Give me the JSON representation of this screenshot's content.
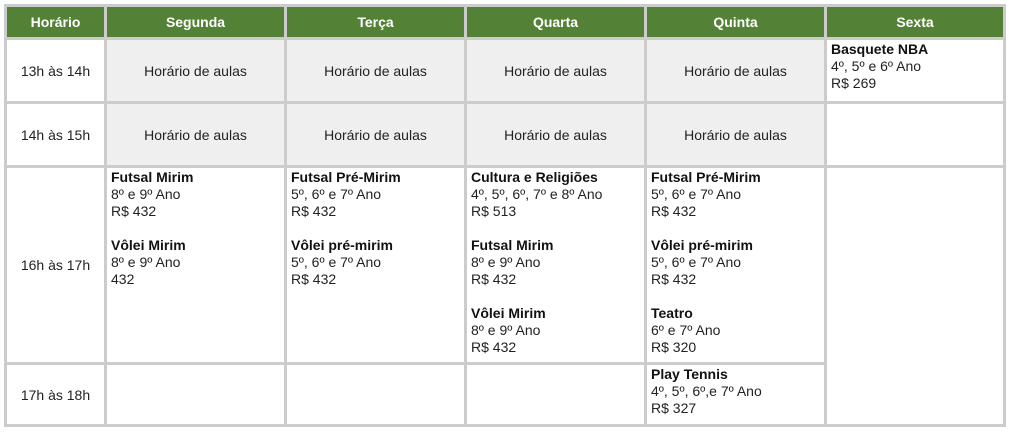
{
  "colors": {
    "header_bg": "#538135",
    "header_text": "#ffffff",
    "class_cell_bg": "#efefef",
    "border": "#cccccc"
  },
  "header": [
    "Horário",
    "Segunda",
    "Terça",
    "Quarta",
    "Quinta",
    "Sexta"
  ],
  "rows": [
    {
      "time": "13h às 14h",
      "cells": [
        {
          "type": "aulas",
          "text": "Horário de aulas"
        },
        {
          "type": "aulas",
          "text": "Horário de aulas"
        },
        {
          "type": "aulas",
          "text": "Horário de aulas"
        },
        {
          "type": "aulas",
          "text": "Horário de aulas"
        },
        {
          "type": "acts",
          "items": [
            {
              "name": "Basquete NBA",
              "grade": "4º, 5º e 6º  Ano",
              "price": "R$ 269"
            }
          ]
        }
      ]
    },
    {
      "time": "14h às 15h",
      "cells": [
        {
          "type": "aulas",
          "text": "Horário de aulas"
        },
        {
          "type": "aulas",
          "text": "Horário de aulas"
        },
        {
          "type": "aulas",
          "text": "Horário de aulas"
        },
        {
          "type": "aulas",
          "text": "Horário de aulas"
        },
        {
          "type": "empty"
        }
      ]
    },
    {
      "time": "16h às 17h",
      "cells": [
        {
          "type": "acts",
          "items": [
            {
              "name": "Futsal Mirim",
              "grade": "8º e 9º Ano",
              "price": "R$ 432"
            },
            {
              "name": "Vôlei Mirim",
              "grade": "8º e 9º Ano",
              "price": "432"
            }
          ]
        },
        {
          "type": "acts",
          "items": [
            {
              "name": "Futsal Pré-Mirim",
              "grade": "5º, 6º e 7º Ano",
              "price": "R$ 432"
            },
            {
              "name": "Vôlei pré-mirim",
              "grade": "5º, 6º e 7º Ano",
              "price": "R$ 432"
            }
          ]
        },
        {
          "type": "acts",
          "items": [
            {
              "name": "Cultura e Religiões",
              "grade": "4º, 5º, 6º, 7º e 8º Ano",
              "price": "R$ 513"
            },
            {
              "name": "Futsal Mirim",
              "grade": "8º e 9º Ano",
              "price": "R$ 432"
            },
            {
              "name": "Vôlei Mirim",
              "grade": "8º e 9º Ano",
              "price": "R$ 432"
            }
          ]
        },
        {
          "type": "acts",
          "items": [
            {
              "name": "Futsal Pré-Mirim",
              "grade": "5º, 6º e 7º Ano",
              "price": "R$ 432"
            },
            {
              "name": "Vôlei pré-mirim",
              "grade": "5º, 6º e 7º Ano",
              "price": "R$ 432"
            },
            {
              "name": "Teatro",
              "grade": "6º e 7º Ano",
              "price": "R$ 320"
            }
          ]
        },
        {
          "type": "empty",
          "rowspan": 2
        }
      ]
    },
    {
      "time": "17h às 18h",
      "cells": [
        {
          "type": "empty"
        },
        {
          "type": "empty"
        },
        {
          "type": "empty"
        },
        {
          "type": "acts",
          "items": [
            {
              "name": "Play Tennis",
              "grade": "4º, 5º, 6º,e 7º Ano",
              "price": "R$ 327"
            }
          ]
        }
      ]
    }
  ]
}
